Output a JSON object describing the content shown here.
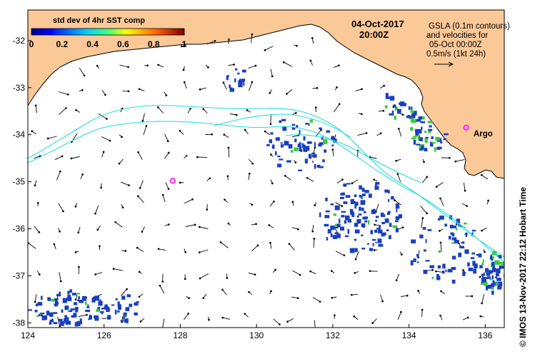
{
  "map": {
    "lon_ticks": [
      "124",
      "126",
      "128",
      "130",
      "132",
      "134",
      "136"
    ],
    "lat_ticks": [
      "-32",
      "-33",
      "-34",
      "-35",
      "-36",
      "-37",
      "-38"
    ],
    "lon_range": [
      124,
      136.5
    ],
    "lat_range": [
      -31.35,
      -38.1
    ]
  },
  "legend": {
    "title": "std dev of 4hr SST comp",
    "ticks": [
      "0",
      "0.2",
      "0.4",
      "0.6",
      "0.8",
      "1"
    ]
  },
  "date": {
    "day": "04-Oct-2017",
    "time": "20:00Z"
  },
  "info": {
    "line1": "GSLA (0.1m contours)",
    "line2": "and velocities for",
    "line3": "05-Oct 00:00Z",
    "line4": "0.5m/s (1kt 24h)"
  },
  "argo": {
    "label": "Argo",
    "floats": [
      {
        "lon": 127.8,
        "lat": -34.98
      },
      {
        "lon": 135.5,
        "lat": -33.85
      }
    ]
  },
  "credit": "© IMOS 13-Nov-2017 22:12 Hobart Time",
  "colors": {
    "land": "#fbc898",
    "coast": "#000000",
    "contour": "#22dddd",
    "argo": "#ff22ff",
    "sst_low": "#1a3fbf",
    "sst_high": "#3cc93c"
  }
}
